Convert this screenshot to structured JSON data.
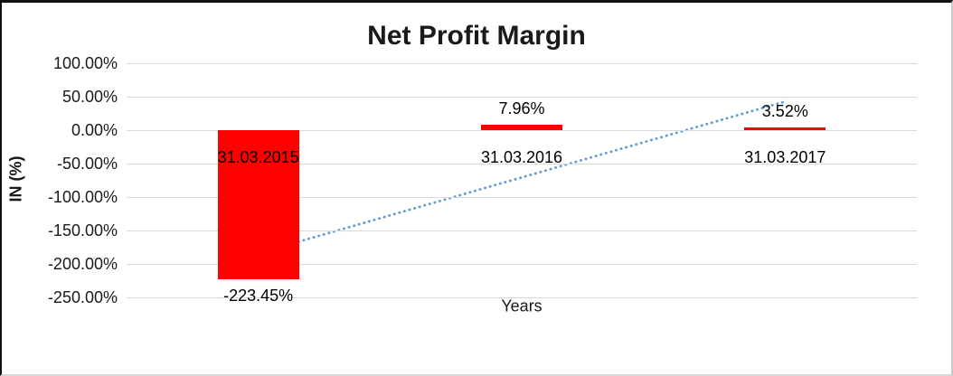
{
  "chart_data": {
    "type": "bar",
    "title": "Net Profit Margin",
    "xlabel": "Years",
    "ylabel": "IN (%)",
    "categories": [
      "31.03.2015",
      "31.03.2016",
      "31.03.2017"
    ],
    "series": [
      {
        "name": "Net Profit Margin",
        "values": [
          -223.45,
          7.96,
          3.52
        ],
        "data_labels": [
          "-223.45%",
          "7.96%",
          "3.52%"
        ],
        "color": "#ff0000"
      }
    ],
    "ylim": [
      -250,
      100
    ],
    "yticks": [
      {
        "value": 100,
        "label": "100.00%"
      },
      {
        "value": 50,
        "label": "50.00%"
      },
      {
        "value": 0,
        "label": "0.00%"
      },
      {
        "value": -50,
        "label": "-50.00%"
      },
      {
        "value": -100,
        "label": "-100.00%"
      },
      {
        "value": -150,
        "label": "-150.00%"
      },
      {
        "value": -200,
        "label": "-200.00%"
      },
      {
        "value": -250,
        "label": "-250.00%"
      }
    ],
    "grid": true,
    "gridline_color": "#d9d9d9",
    "legend": "none",
    "trendline": {
      "type": "linear",
      "style": "dotted",
      "color": "#5b9bd5"
    },
    "colors": {
      "bar": "#ff0000",
      "trendline": "#5b9bd5",
      "gridline": "#d9d9d9",
      "text": "#1a1a1a",
      "background": "#ffffff"
    }
  }
}
